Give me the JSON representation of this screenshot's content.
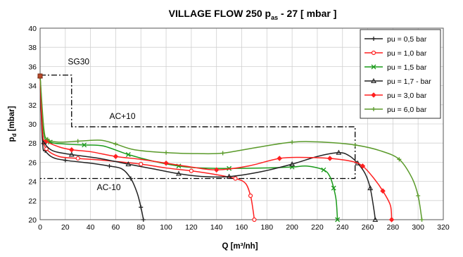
{
  "chart_data": {
    "type": "line",
    "title": "VILLAGE FLOW 250 p",
    "title_sub": "as",
    "title_suffix": " - 27 [ mbar ]",
    "xlabel": "Q [m³/nh]",
    "ylabel_main": "p",
    "ylabel_sub": "d",
    "ylabel_suffix": " [mbar]",
    "xlim": [
      0,
      320
    ],
    "ylim": [
      20,
      40
    ],
    "xticks": [
      0,
      20,
      40,
      60,
      80,
      100,
      120,
      140,
      160,
      180,
      200,
      220,
      240,
      260,
      280,
      300,
      320
    ],
    "yticks": [
      20,
      22,
      24,
      26,
      28,
      30,
      32,
      34,
      36,
      38,
      40
    ],
    "grid": true,
    "legend_position": "top-right",
    "series": [
      {
        "name": "pu = 0,5 bar",
        "color": "#222222",
        "marker": "plus",
        "points": [
          [
            0,
            35
          ],
          [
            2,
            28
          ],
          [
            4,
            27.2
          ],
          [
            10,
            26.5
          ],
          [
            20,
            26.2
          ],
          [
            40,
            25.9
          ],
          [
            55,
            25.6
          ],
          [
            65,
            25.3
          ],
          [
            72,
            24.3
          ],
          [
            77,
            22.8
          ],
          [
            80,
            21.3
          ],
          [
            82,
            20
          ]
        ]
      },
      {
        "name": "pu = 1,0 bar",
        "color": "#ff2020",
        "marker": "circle",
        "points": [
          [
            0,
            35
          ],
          [
            2,
            29
          ],
          [
            5,
            27.4
          ],
          [
            15,
            26.6
          ],
          [
            30,
            26.4
          ],
          [
            50,
            26.2
          ],
          [
            80,
            25.8
          ],
          [
            100,
            25.4
          ],
          [
            120,
            25.1
          ],
          [
            140,
            24.7
          ],
          [
            155,
            24.3
          ],
          [
            163,
            23.8
          ],
          [
            167,
            22.5
          ],
          [
            169,
            21
          ],
          [
            170,
            20
          ]
        ]
      },
      {
        "name": "pu = 1,5 bar",
        "color": "#1a9a1a",
        "marker": "x",
        "points": [
          [
            0,
            35
          ],
          [
            3,
            29
          ],
          [
            8,
            28.1
          ],
          [
            20,
            27.9
          ],
          [
            35,
            27.8
          ],
          [
            50,
            27.7
          ],
          [
            70,
            26.8
          ],
          [
            90,
            26.1
          ],
          [
            110,
            25.6
          ],
          [
            127,
            25.4
          ],
          [
            150,
            25.35
          ],
          [
            180,
            25.4
          ],
          [
            200,
            25.5
          ],
          [
            212,
            25.6
          ],
          [
            225,
            25.2
          ],
          [
            230,
            24.5
          ],
          [
            233,
            23.3
          ],
          [
            235,
            22
          ],
          [
            236,
            20
          ]
        ]
      },
      {
        "name": "pu = 1,7 - bar",
        "color": "#222222",
        "marker": "triangle",
        "points": [
          [
            0,
            35
          ],
          [
            1.5,
            29
          ],
          [
            3,
            28.1
          ],
          [
            10,
            27.2
          ],
          [
            25,
            26.8
          ],
          [
            47,
            26.4
          ],
          [
            70,
            25.8
          ],
          [
            90,
            25.3
          ],
          [
            110,
            24.8
          ],
          [
            130,
            24.5
          ],
          [
            150,
            24.5
          ],
          [
            175,
            25
          ],
          [
            200,
            25.8
          ],
          [
            220,
            26.6
          ],
          [
            237,
            27
          ],
          [
            245,
            26.7
          ],
          [
            252,
            25.9
          ],
          [
            258,
            24.8
          ],
          [
            262,
            23.3
          ],
          [
            265,
            21
          ],
          [
            266,
            20
          ]
        ]
      },
      {
        "name": "pu = 3,0 bar",
        "color": "#ff2020",
        "marker": "diamond",
        "points": [
          [
            0,
            35
          ],
          [
            2,
            29
          ],
          [
            5,
            28.2
          ],
          [
            15,
            27.6
          ],
          [
            25,
            27.3
          ],
          [
            40,
            27.1
          ],
          [
            60,
            26.6
          ],
          [
            80,
            26.3
          ],
          [
            100,
            25.9
          ],
          [
            120,
            25.5
          ],
          [
            140,
            25.2
          ],
          [
            165,
            25.6
          ],
          [
            190,
            26.4
          ],
          [
            210,
            26.5
          ],
          [
            230,
            26.4
          ],
          [
            247,
            26.1
          ],
          [
            256,
            25.6
          ],
          [
            265,
            24.3
          ],
          [
            272,
            23
          ],
          [
            278,
            21.5
          ],
          [
            279,
            20
          ]
        ]
      },
      {
        "name": "pu = 6,0 bar",
        "color": "#5a9a2a",
        "marker": "plus",
        "points": [
          [
            0,
            35
          ],
          [
            3,
            29.5
          ],
          [
            6,
            28.4
          ],
          [
            15,
            28.1
          ],
          [
            30,
            28.2
          ],
          [
            48,
            28.3
          ],
          [
            60,
            27.9
          ],
          [
            75,
            27.3
          ],
          [
            100,
            27
          ],
          [
            125,
            26.9
          ],
          [
            145,
            26.95
          ],
          [
            170,
            27.5
          ],
          [
            200,
            28.1
          ],
          [
            225,
            28.1
          ],
          [
            250,
            27.8
          ],
          [
            270,
            27.2
          ],
          [
            285,
            26.3
          ],
          [
            295,
            24.4
          ],
          [
            300,
            22.5
          ],
          [
            303,
            20
          ]
        ]
      }
    ],
    "reference_lines": [
      {
        "label": "SG30",
        "points": [
          [
            0,
            35.1
          ],
          [
            25,
            35.1
          ],
          [
            25,
            29.7
          ],
          [
            250,
            29.7
          ],
          [
            250,
            24.3
          ],
          [
            0,
            24.3
          ]
        ]
      }
    ],
    "annotations": [
      {
        "text": "SG30",
        "x": 22,
        "y": 36.2
      },
      {
        "text": "AC+10",
        "x": 55,
        "y": 30.5
      },
      {
        "text": "AC-10",
        "x": 45,
        "y": 23.1
      }
    ]
  }
}
